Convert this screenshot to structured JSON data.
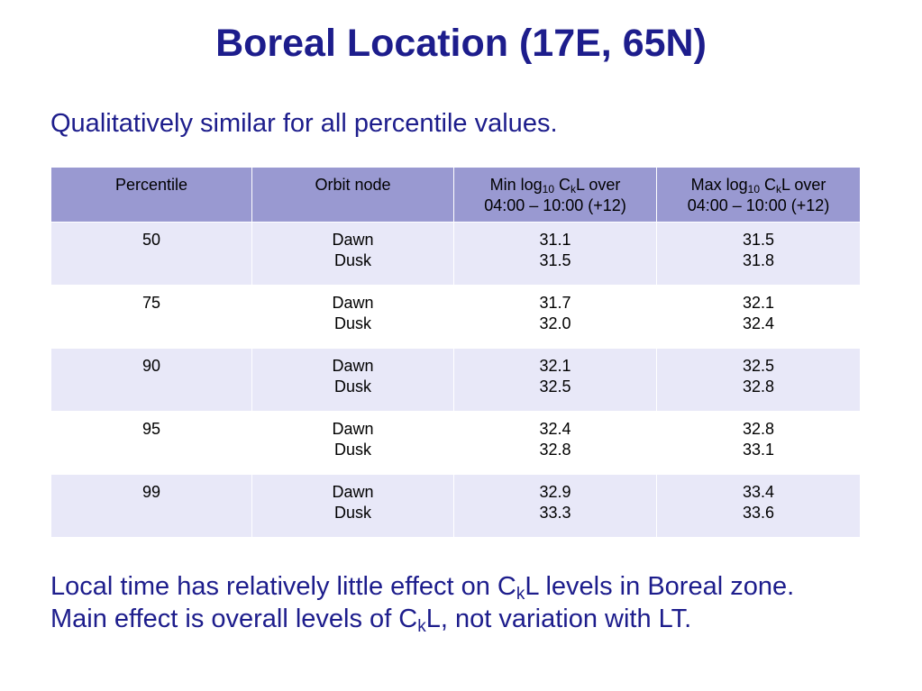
{
  "title": "Boreal Location (17E, 65N)",
  "subtitle": "Qualitatively similar for all percentile values.",
  "table": {
    "headers": {
      "percentile": "Percentile",
      "orbit_node": "Orbit node",
      "min": {
        "pre": "Min log",
        "sub1": "10",
        "mid": " C",
        "sub2": "k",
        "post": "L over",
        "line2": "04:00 – 10:00 (+12)"
      },
      "max": {
        "pre": "Max log",
        "sub1": "10",
        "mid": " C",
        "sub2": "k",
        "post": "L over",
        "line2": "04:00 – 10:00 (+12)"
      }
    },
    "rows": [
      {
        "percentile": "50",
        "node1": "Dawn",
        "node2": "Dusk",
        "min1": "31.1",
        "min2": "31.5",
        "max1": "31.5",
        "max2": "31.8"
      },
      {
        "percentile": "75",
        "node1": "Dawn",
        "node2": "Dusk",
        "min1": "31.7",
        "min2": "32.0",
        "max1": "32.1",
        "max2": "32.4"
      },
      {
        "percentile": "90",
        "node1": "Dawn",
        "node2": "Dusk",
        "min1": "32.1",
        "min2": "32.5",
        "max1": "32.5",
        "max2": "32.8"
      },
      {
        "percentile": "95",
        "node1": "Dawn",
        "node2": "Dusk",
        "min1": "32.4",
        "min2": "32.8",
        "max1": "32.8",
        "max2": "33.1"
      },
      {
        "percentile": "99",
        "node1": "Dawn",
        "node2": "Dusk",
        "min1": "32.9",
        "min2": "33.3",
        "max1": "33.4",
        "max2": "33.6"
      }
    ]
  },
  "notes": {
    "line1": {
      "pre": "Local time has relatively little effect on C",
      "sub": "k",
      "post": "L levels in Boreal zone."
    },
    "line2": {
      "pre": "Main effect is overall levels of C",
      "sub": "k",
      "post": "L, not variation with LT."
    }
  },
  "colors": {
    "text_accent": "#1d1d8c",
    "header_bg": "#9999d1",
    "row_alt_bg": "#e8e8f8"
  }
}
